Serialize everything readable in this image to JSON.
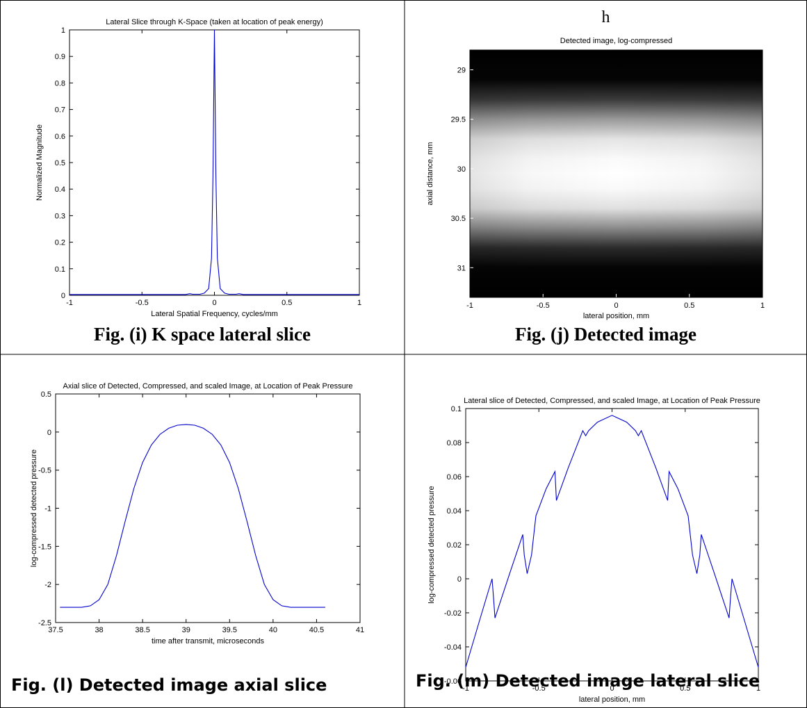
{
  "panels": {
    "i": {
      "caption": "Fig. (i) K space lateral slice",
      "chart": {
        "type": "line",
        "title": "Lateral Slice through K-Space (taken at location of peak energy)",
        "xlabel": "Lateral Spatial Frequency, cycles/mm",
        "ylabel": "Normalized Magnitude",
        "xlim": [
          -1,
          1
        ],
        "ylim": [
          0,
          1
        ],
        "xticks": [
          -1,
          -0.5,
          0,
          0.5,
          1
        ],
        "xtick_labels": [
          "-1",
          "-0.5",
          "0",
          "0.5",
          "1"
        ],
        "yticks": [
          0,
          0.1,
          0.2,
          0.3,
          0.4,
          0.5,
          0.6,
          0.7,
          0.8,
          0.9,
          1
        ],
        "ytick_labels": [
          "0",
          "0.1",
          "0.2",
          "0.3",
          "0.4",
          "0.5",
          "0.6",
          "0.7",
          "0.8",
          "0.9",
          "1"
        ],
        "line_color": "#0000cc",
        "series": [
          {
            "x": [
              -1,
              -0.5,
              -0.2,
              -0.17,
              -0.15,
              -0.1,
              -0.07,
              -0.04,
              -0.02,
              -0.01,
              0,
              0.01,
              0.02,
              0.04,
              0.07,
              0.1,
              0.15,
              0.17,
              0.2,
              0.5,
              1
            ],
            "y": [
              0.003,
              0.003,
              0.003,
              0.006,
              0.004,
              0.004,
              0.008,
              0.025,
              0.14,
              0.45,
              1,
              0.45,
              0.14,
              0.025,
              0.008,
              0.004,
              0.004,
              0.006,
              0.003,
              0.003,
              0.003
            ]
          }
        ]
      }
    },
    "j": {
      "label": "h",
      "caption": "Fig. (j) Detected image",
      "chart": {
        "type": "heatmap",
        "title": "Detected image, log-compressed",
        "xlabel": "lateral position, mm",
        "ylabel": "axial distance, mm",
        "xlim": [
          -1,
          1
        ],
        "ylim": [
          31.3,
          28.8
        ],
        "xticks": [
          -1,
          -0.5,
          0,
          0.5,
          1
        ],
        "xtick_labels": [
          "-1",
          "-0.5",
          "0",
          "0.5",
          "1"
        ],
        "yticks": [
          29,
          29.5,
          30,
          30.5,
          31
        ],
        "ytick_labels": [
          "29",
          "29.5",
          "30",
          "30.5",
          "31"
        ],
        "colormap": "gray",
        "peak_axial": 30,
        "peak_lateral": 0
      }
    },
    "l": {
      "caption": "Fig. (l) Detected image axial slice",
      "chart": {
        "type": "line",
        "title": "Axial slice of Detected, Compressed, and scaled Image, at Location of Peak Pressure",
        "xlabel": "time after transmit, microseconds",
        "ylabel": "log-compressed detected pressure",
        "xlim": [
          37.5,
          41
        ],
        "ylim": [
          -2.5,
          0.5
        ],
        "xticks": [
          37.5,
          38,
          38.5,
          39,
          39.5,
          40,
          40.5,
          41
        ],
        "xtick_labels": [
          "37.5",
          "38",
          "38.5",
          "39",
          "39.5",
          "40",
          "40.5",
          "41"
        ],
        "yticks": [
          -2.5,
          -2,
          -1.5,
          -1,
          -0.5,
          0,
          0.5
        ],
        "ytick_labels": [
          "-2.5",
          "-2",
          "-1.5",
          "-1",
          "-0.5",
          "0",
          "0.5"
        ],
        "line_color": "#0000cc",
        "series": [
          {
            "x": [
              37.55,
              37.8,
              37.9,
              38.0,
              38.1,
              38.2,
              38.3,
              38.4,
              38.5,
              38.6,
              38.7,
              38.8,
              38.9,
              39.0,
              39.1,
              39.2,
              39.3,
              39.4,
              39.5,
              39.6,
              39.7,
              39.8,
              39.9,
              40.0,
              40.1,
              40.2,
              40.6
            ],
            "y": [
              -2.3,
              -2.3,
              -2.28,
              -2.2,
              -2.0,
              -1.62,
              -1.17,
              -0.74,
              -0.4,
              -0.17,
              -0.03,
              0.05,
              0.09,
              0.1,
              0.09,
              0.05,
              -0.03,
              -0.17,
              -0.4,
              -0.74,
              -1.17,
              -1.62,
              -2.0,
              -2.2,
              -2.28,
              -2.3,
              -2.3
            ]
          }
        ]
      }
    },
    "m": {
      "caption": "Fig. (m) Detected image lateral slice",
      "chart": {
        "type": "line",
        "title": "Lateral slice of Detected, Compressed, and scaled Image, at Location of Peak Pressure",
        "xlabel": "lateral position, mm",
        "ylabel": "log-compressed detected pressure",
        "xlim": [
          -1,
          1
        ],
        "ylim": [
          -0.06,
          0.1
        ],
        "xticks": [
          -1,
          -0.5,
          0,
          0.5,
          1
        ],
        "xtick_labels": [
          "-1",
          "-0.5",
          "0",
          "0.5",
          "1"
        ],
        "yticks": [
          -0.06,
          -0.04,
          -0.02,
          0,
          0.02,
          0.04,
          0.06,
          0.08,
          0.1
        ],
        "ytick_labels": [
          "-0.06",
          "-0.04",
          "-0.02",
          "0",
          "0.02",
          "0.04",
          "0.06",
          "0.08",
          "0.1"
        ],
        "line_color": "#0000cc",
        "series": [
          {
            "x": [
              -1,
              -0.9,
              -0.82,
              -0.81,
              -0.8,
              -0.7,
              -0.61,
              -0.6,
              -0.58,
              -0.55,
              -0.52,
              -0.45,
              -0.39,
              -0.38,
              -0.3,
              -0.2,
              -0.18,
              -0.16,
              -0.1,
              0,
              0.1,
              0.16,
              0.18,
              0.2,
              0.3,
              0.38,
              0.39,
              0.45,
              0.52,
              0.55,
              0.58,
              0.6,
              0.61,
              0.7,
              0.8,
              0.81,
              0.82,
              0.9,
              1
            ],
            "y": [
              -0.052,
              -0.023,
              0.0,
              -0.011,
              -0.023,
              0.003,
              0.026,
              0.014,
              0.003,
              0.014,
              0.037,
              0.053,
              0.063,
              0.046,
              0.065,
              0.087,
              0.084,
              0.087,
              0.092,
              0.096,
              0.092,
              0.087,
              0.084,
              0.087,
              0.065,
              0.046,
              0.063,
              0.053,
              0.037,
              0.014,
              0.003,
              0.014,
              0.026,
              0.003,
              -0.023,
              -0.011,
              0.0,
              -0.023,
              -0.052
            ]
          }
        ]
      }
    }
  }
}
